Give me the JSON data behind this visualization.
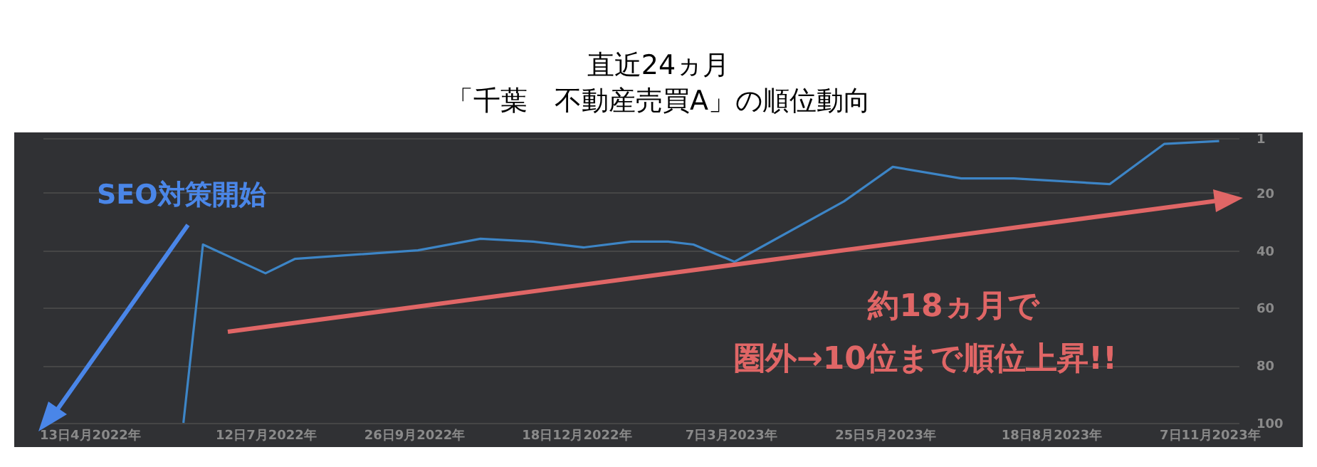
{
  "chart_data": {
    "type": "line",
    "title": "直近24ヵ月",
    "subtitle": "「千葉　不動産売買A」の順位動向",
    "x": [
      "2022-05-31",
      "2022-06-10",
      "2022-07-12",
      "2022-07-27",
      "2022-09-28",
      "2022-10-30",
      "2022-11-26",
      "2022-12-22",
      "2023-01-15",
      "2023-02-03",
      "2023-02-16",
      "2023-03-09",
      "2023-05-04",
      "2023-05-29",
      "2023-07-03",
      "2023-07-30",
      "2023-09-17",
      "2023-10-15",
      "2023-11-12"
    ],
    "series": [
      {
        "color": "#3d85c6",
        "values": [
          100,
          38,
          48,
          43,
          40,
          36,
          37,
          39,
          37,
          37,
          38,
          44,
          23,
          11,
          15,
          15,
          17,
          3,
          2
        ]
      }
    ],
    "ylim": [
      100,
      1
    ],
    "yticks": [
      1,
      20,
      40,
      60,
      80,
      100
    ],
    "xlim": [
      "2022-03-20",
      "2023-11-22"
    ],
    "xticks": [
      {
        "value": "2022-04-13",
        "label": "13日4月2022年"
      },
      {
        "value": "2022-07-12",
        "label": "12日7月2022年"
      },
      {
        "value": "2022-09-26",
        "label": "26日9月2022年"
      },
      {
        "value": "2022-12-18",
        "label": "18日12月2022年"
      },
      {
        "value": "2023-03-07",
        "label": "7日3月2023年"
      },
      {
        "value": "2023-05-25",
        "label": "25日5月2023年"
      },
      {
        "value": "2023-08-18",
        "label": "18日8月2023年"
      },
      {
        "value": "2023-11-07",
        "label": "7日11月2023年"
      }
    ],
    "grid": "y",
    "marker": "none",
    "line_style": "solid",
    "annotations": [
      "SEO対策開始",
      "約18ヵ月で",
      "圏外→10位まで順位上昇!!"
    ]
  }
}
